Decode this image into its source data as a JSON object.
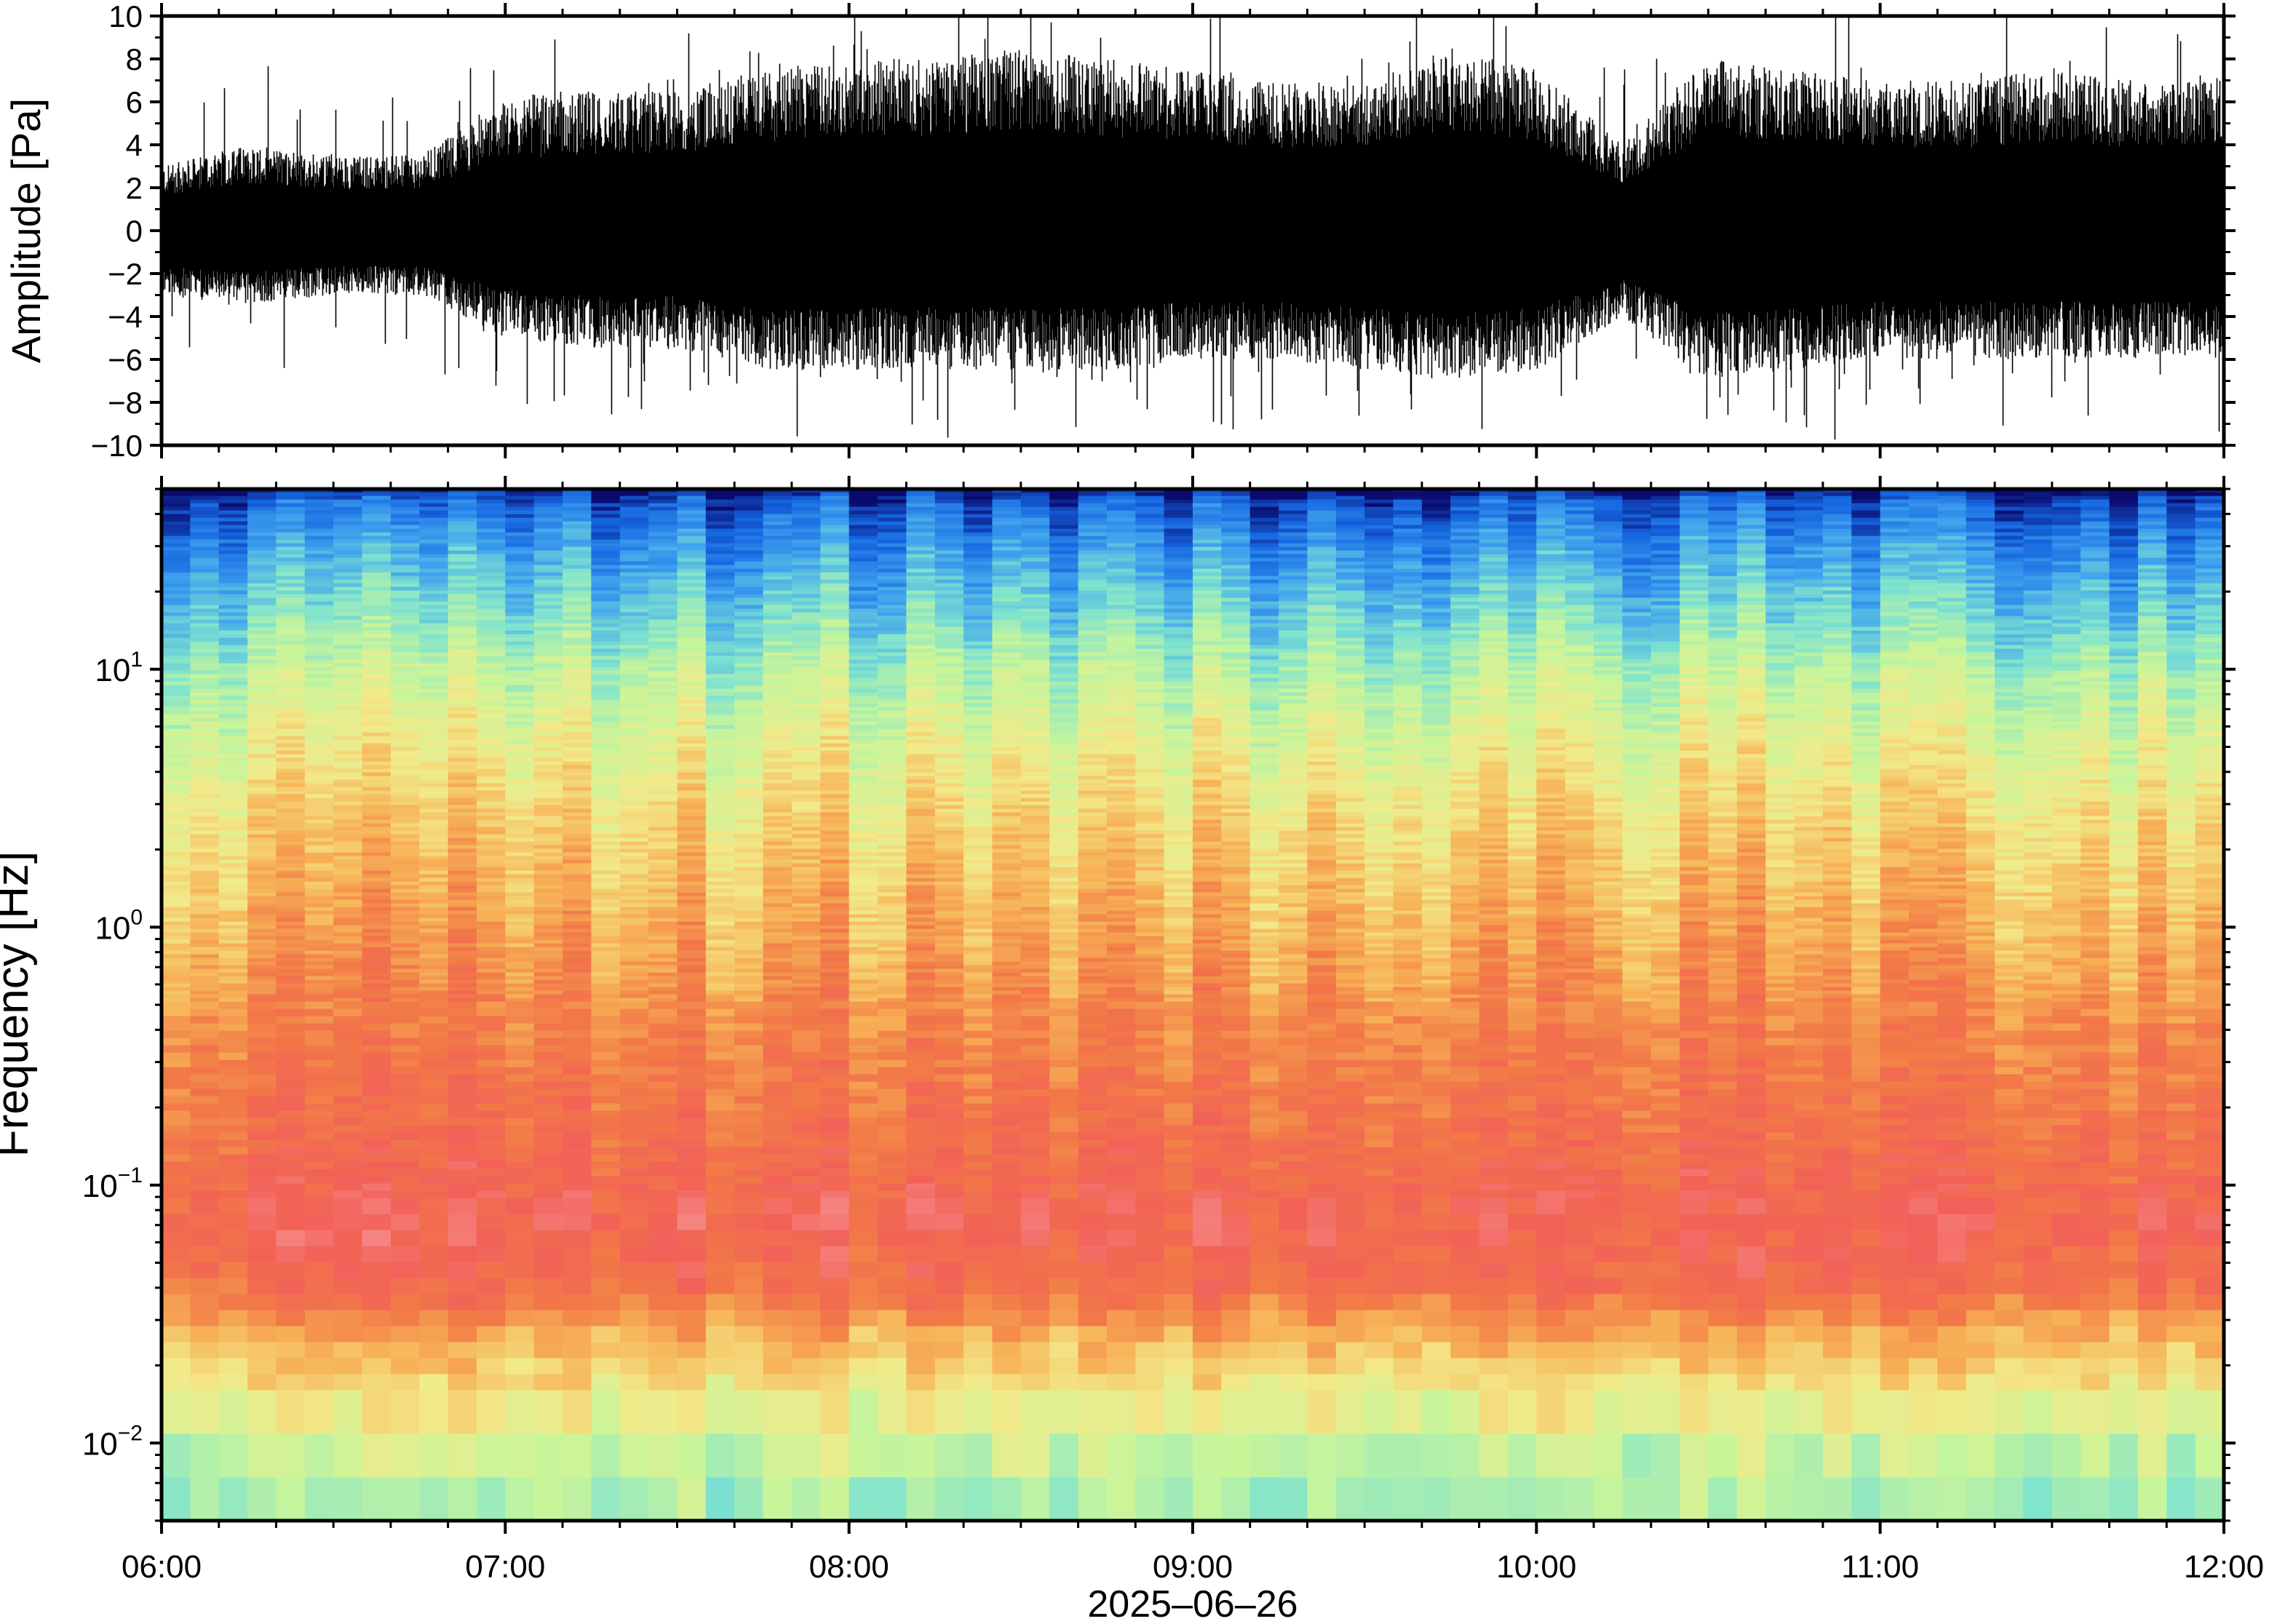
{
  "chart_data": [
    {
      "type": "line",
      "panel": "waveform",
      "title": "",
      "ylabel": "Amplitude [Pa]",
      "xlabel": "",
      "ylim": [
        -10,
        10
      ],
      "yticks": [
        -10,
        -8,
        -6,
        -4,
        -2,
        0,
        2,
        4,
        6,
        8,
        10
      ],
      "ytick_labels": [
        "−10",
        "−8",
        "−6",
        "−4",
        "−2",
        "0",
        "2",
        "4",
        "6",
        "8",
        "10"
      ],
      "line_color": "#000000",
      "series": [
        {
          "x": [
            "06:00",
            "06:15",
            "06:30",
            "06:45",
            "07:00",
            "07:15",
            "07:30",
            "07:45",
            "08:00",
            "08:15",
            "08:30",
            "08:45",
            "09:00",
            "09:15",
            "09:30",
            "09:45",
            "10:00",
            "10:15",
            "10:30",
            "10:45",
            "11:00",
            "11:15",
            "11:30",
            "11:45",
            "12:00"
          ],
          "envelope_upper": [
            3,
            4,
            3.5,
            3.5,
            6,
            6.5,
            6.5,
            7.5,
            8,
            8,
            8.5,
            8,
            7.5,
            7,
            7,
            8.5,
            7.5,
            4,
            8,
            7.5,
            7,
            7,
            7.5,
            7,
            7.5
          ],
          "envelope_lower": [
            -3,
            -3.5,
            -3,
            -3,
            -5,
            -5.5,
            -5.5,
            -6.5,
            -6.5,
            -6.5,
            -6.5,
            -6.5,
            -6,
            -6,
            -6.5,
            -7,
            -6.5,
            -4,
            -7,
            -6.5,
            -6,
            -6,
            -6,
            -6,
            -6
          ]
        }
      ]
    },
    {
      "type": "heatmap",
      "panel": "spectrogram",
      "title": "",
      "ylabel": "Frequency [Hz]",
      "xlabel": "2025–06–26",
      "y_scale": "log",
      "ylim": [
        0.005,
        50
      ],
      "yticks": [
        0.01,
        0.1,
        1,
        10
      ],
      "ytick_labels": [
        {
          "base": "10",
          "exp": "−2"
        },
        {
          "base": "10",
          "exp": "−1"
        },
        {
          "base": "10",
          "exp": "0"
        },
        {
          "base": "10",
          "exp": "1"
        }
      ],
      "x_ticks": [
        "06:00",
        "07:00",
        "08:00",
        "09:00",
        "10:00",
        "11:00",
        "12:00"
      ],
      "colormap": [
        "#0a0a6e",
        "#1565e0",
        "#3fa2ee",
        "#7fe3cf",
        "#c8f59a",
        "#f2ea8a",
        "#f7b357",
        "#f27a47",
        "#f26158",
        "#f79a9a"
      ],
      "frequency_profile": [
        {
          "freq": 50,
          "level": 0.0
        },
        {
          "freq": 45,
          "level": 0.1
        },
        {
          "freq": 30,
          "level": 0.2
        },
        {
          "freq": 18,
          "level": 0.3
        },
        {
          "freq": 10,
          "level": 0.42
        },
        {
          "freq": 5,
          "level": 0.52
        },
        {
          "freq": 2.5,
          "level": 0.6
        },
        {
          "freq": 1,
          "level": 0.68
        },
        {
          "freq": 0.4,
          "level": 0.76
        },
        {
          "freq": 0.15,
          "level": 0.82
        },
        {
          "freq": 0.07,
          "level": 0.88
        },
        {
          "freq": 0.04,
          "level": 0.82
        },
        {
          "freq": 0.025,
          "level": 0.66
        },
        {
          "freq": 0.015,
          "level": 0.55
        },
        {
          "freq": 0.009,
          "level": 0.45
        },
        {
          "freq": 0.005,
          "level": 0.38
        }
      ]
    }
  ]
}
